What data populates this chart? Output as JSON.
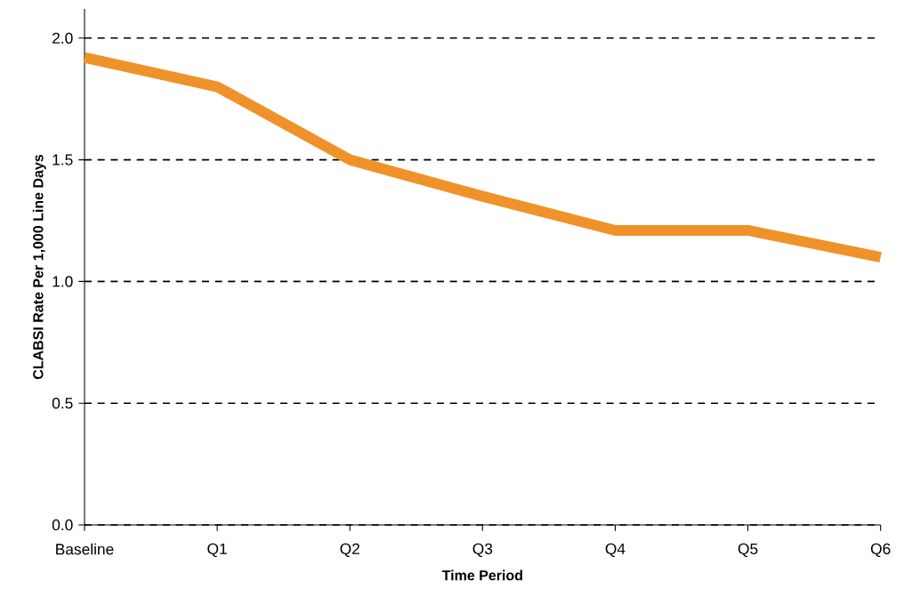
{
  "chart_data": {
    "type": "line",
    "xlabel": "Time Period",
    "ylabel": "CLABSI Rate Per 1,000 Line Days",
    "categories": [
      "Baseline",
      "Q1",
      "Q2",
      "Q3",
      "Q4",
      "Q5",
      "Q6"
    ],
    "series": [
      {
        "color": "#f0922a",
        "values": [
          1.92,
          1.8,
          1.5,
          1.35,
          1.21,
          1.21,
          1.1
        ]
      }
    ],
    "ylim": [
      0,
      2.12
    ],
    "yticks": [
      {
        "value": 0,
        "label": "0.0"
      },
      {
        "value": 0.5,
        "label": "0.5"
      },
      {
        "value": 1,
        "label": "1.0"
      },
      {
        "value": 1.5,
        "label": "1.5"
      },
      {
        "value": 2,
        "label": "2.0"
      }
    ],
    "grid": "y",
    "line_style": "solid",
    "marker": "none"
  }
}
